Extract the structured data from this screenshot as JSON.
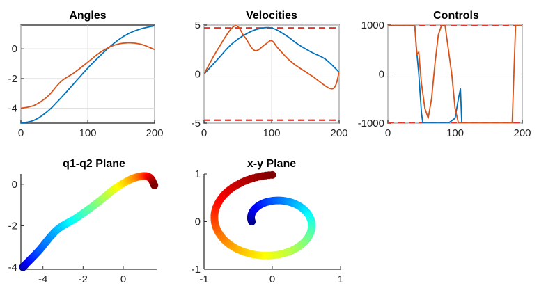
{
  "colors": {
    "series1": "#0072BD",
    "series2": "#D95319",
    "bounds": "#E8332A"
  },
  "chart_data": [
    {
      "type": "line",
      "title": "Angles",
      "xlim": [
        0,
        200
      ],
      "ylim": [
        -5,
        1.6
      ],
      "xticks": [
        0,
        100,
        200
      ],
      "yticks": [
        0,
        -2,
        -4
      ],
      "xtick_labels": [
        "0",
        "100",
        "200"
      ],
      "ytick_labels": [
        "0",
        "-2",
        "-4"
      ],
      "grid": true,
      "series": [
        {
          "color": "series1",
          "x": [
            0,
            20,
            40,
            60,
            80,
            100,
            120,
            140,
            160,
            180,
            200
          ],
          "y": [
            -5.0,
            -4.8,
            -4.2,
            -3.3,
            -2.3,
            -1.3,
            -0.4,
            0.4,
            1.0,
            1.35,
            1.55
          ]
        },
        {
          "color": "series2",
          "x": [
            0,
            20,
            40,
            60,
            80,
            100,
            120,
            140,
            160,
            180,
            200
          ],
          "y": [
            -4.0,
            -3.8,
            -3.2,
            -2.2,
            -1.6,
            -0.9,
            -0.2,
            0.25,
            0.4,
            0.3,
            -0.05
          ]
        }
      ]
    },
    {
      "type": "line",
      "title": "Velocities",
      "xlim": [
        0,
        200
      ],
      "ylim": [
        -5,
        5
      ],
      "xticks": [
        0,
        100,
        200
      ],
      "yticks": [
        5,
        0,
        -5
      ],
      "xtick_labels": [
        "0",
        "100",
        "200"
      ],
      "ytick_labels": [
        "5",
        "0",
        "-5"
      ],
      "grid": true,
      "bounds": [
        4.7,
        -4.7
      ],
      "series": [
        {
          "color": "series1",
          "x": [
            0,
            20,
            40,
            60,
            80,
            100,
            120,
            140,
            160,
            180,
            200
          ],
          "y": [
            0,
            1.5,
            3.0,
            4.0,
            4.6,
            4.7,
            4.0,
            3.0,
            2.2,
            1.5,
            0.2
          ]
        },
        {
          "color": "series2",
          "x": [
            0,
            20,
            45,
            60,
            75,
            90,
            100,
            110,
            130,
            160,
            190,
            200
          ],
          "y": [
            0,
            2.5,
            4.9,
            3.8,
            2.4,
            3.0,
            3.4,
            2.6,
            1.2,
            -0.2,
            -1.5,
            0.2
          ]
        }
      ]
    },
    {
      "type": "line",
      "title": "Controls",
      "xlim": [
        0,
        200
      ],
      "ylim": [
        -1000,
        1000
      ],
      "xticks": [
        0,
        100,
        200
      ],
      "yticks": [
        1000,
        0,
        -1000
      ],
      "xtick_labels": [
        "0",
        "100",
        "200"
      ],
      "ytick_labels": [
        "1000",
        "0",
        "-1000"
      ],
      "grid": true,
      "bounds": [
        1000,
        -1000
      ],
      "series": [
        {
          "color": "series1",
          "x": [
            0,
            40,
            42,
            46,
            48,
            50,
            52,
            90,
            100,
            105,
            108,
            110
          ],
          "y": [
            1000,
            1000,
            600,
            0,
            -400,
            -800,
            -1000,
            -1000,
            -900,
            -500,
            -300,
            -1000
          ]
        },
        {
          "color": "series2",
          "x": [
            0,
            40,
            43,
            46,
            48,
            50,
            55,
            60,
            65,
            70,
            75,
            80,
            85,
            90,
            95,
            100,
            105,
            110,
            185,
            190,
            200
          ],
          "y": [
            1000,
            1000,
            400,
            450,
            100,
            -200,
            -700,
            -900,
            -500,
            200,
            800,
            1000,
            1000,
            500,
            0,
            -700,
            -1000,
            -1000,
            -1000,
            1000,
            1000
          ]
        }
      ]
    },
    {
      "type": "scatter",
      "title": "q1-q2 Plane",
      "xlim": [
        -5.1,
        1.7
      ],
      "ylim": [
        -4.1,
        0.5
      ],
      "xticks": [
        -4,
        -2,
        0
      ],
      "yticks": [
        0,
        -2,
        -4
      ],
      "xtick_labels": [
        "-4",
        "-2",
        "0"
      ],
      "ytick_labels": [
        "0",
        "-2",
        "-4"
      ],
      "colormap": "jet",
      "points": {
        "x": [
          -5.0,
          -4.8,
          -4.2,
          -3.3,
          -2.3,
          -1.3,
          -0.4,
          0.4,
          1.0,
          1.35,
          1.55
        ],
        "y": [
          -4.0,
          -3.8,
          -3.2,
          -2.2,
          -1.6,
          -0.9,
          -0.2,
          0.25,
          0.4,
          0.3,
          -0.05
        ]
      }
    },
    {
      "type": "scatter",
      "title": "x-y Plane",
      "xlim": [
        -1,
        1
      ],
      "ylim": [
        -1,
        1
      ],
      "xticks": [
        -1,
        0,
        1
      ],
      "yticks": [
        1,
        0,
        -1
      ],
      "xtick_labels": [
        "-1",
        "0",
        "1"
      ],
      "ytick_labels": [
        "1",
        "0",
        "-1"
      ],
      "colormap": "jet",
      "spiral": {
        "start_radius": 0.3,
        "end_radius": 0.98,
        "turns": 1.25,
        "end_angle_deg": 90
      }
    }
  ]
}
